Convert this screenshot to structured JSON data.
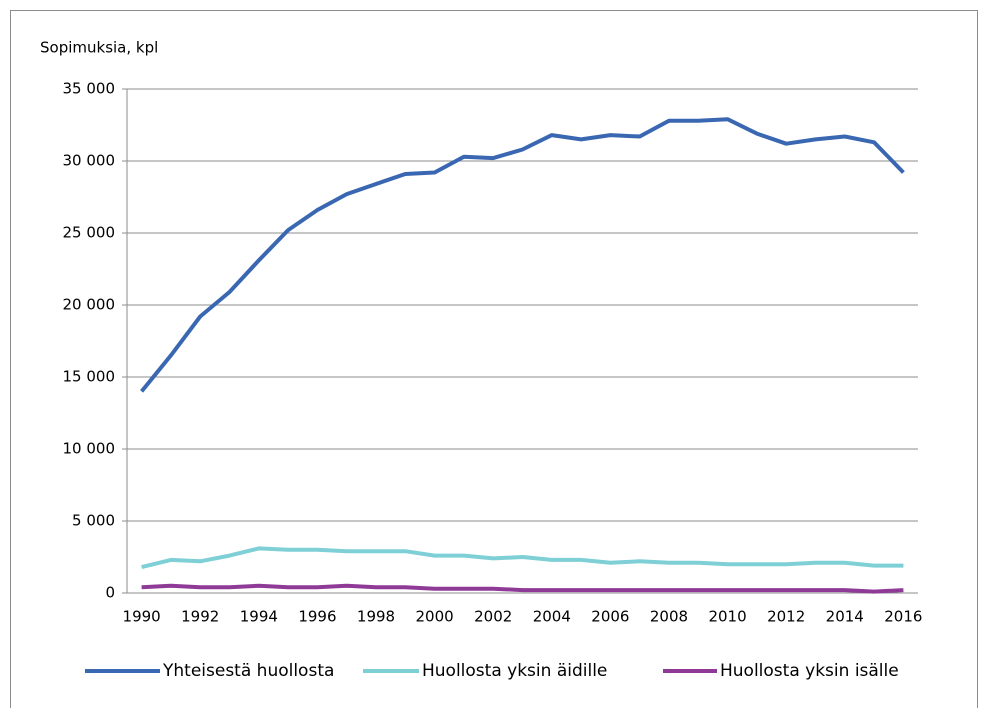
{
  "chart_data": {
    "type": "line",
    "ylabel": "Sopimuksia, kpl",
    "categories": [
      "1990",
      null,
      "1992",
      null,
      "1994",
      null,
      "1996",
      null,
      "1998",
      null,
      "2000",
      null,
      "2002",
      null,
      "2004",
      null,
      "2006",
      null,
      "2008",
      null,
      "2010",
      null,
      "2012",
      null,
      "2014",
      null,
      "2016"
    ],
    "series": [
      {
        "name": "Yhteisestä huollosta",
        "color": "#3a67b1",
        "values": [
          14000,
          16500,
          19200,
          20900,
          23100,
          25200,
          26600,
          27700,
          28400,
          29100,
          29200,
          30300,
          30200,
          30800,
          31800,
          31500,
          31800,
          31700,
          32800,
          32800,
          32900,
          31900,
          31200,
          31500,
          31700,
          31300,
          29200
        ]
      },
      {
        "name": "Huollosta yksin äidille",
        "color": "#7ecfd6",
        "values": [
          1800,
          2300,
          2200,
          2600,
          3100,
          3000,
          3000,
          2900,
          2900,
          2900,
          2600,
          2600,
          2400,
          2500,
          2300,
          2300,
          2100,
          2200,
          2100,
          2100,
          2000,
          2000,
          2000,
          2100,
          2100,
          1900,
          1900
        ]
      },
      {
        "name": "Huollosta yksin isälle",
        "color": "#8e3a96",
        "values": [
          400,
          500,
          400,
          400,
          500,
          400,
          400,
          500,
          400,
          400,
          300,
          300,
          300,
          200,
          200,
          200,
          200,
          200,
          200,
          200,
          200,
          200,
          200,
          200,
          200,
          100,
          200
        ]
      }
    ],
    "ylim": [
      0,
      35000
    ],
    "yticks": [
      0,
      {
        "value": 5000,
        "label": "5 000"
      },
      {
        "value": 10000,
        "label": "10 000"
      },
      {
        "value": 15000,
        "label": "15 000"
      },
      {
        "value": 20000,
        "label": "20 000"
      },
      {
        "value": 25000,
        "label": "25 000"
      },
      {
        "value": 30000,
        "label": "30 000"
      },
      {
        "value": 35000,
        "label": "35 000"
      }
    ],
    "grid": true,
    "legend": "bottom"
  }
}
